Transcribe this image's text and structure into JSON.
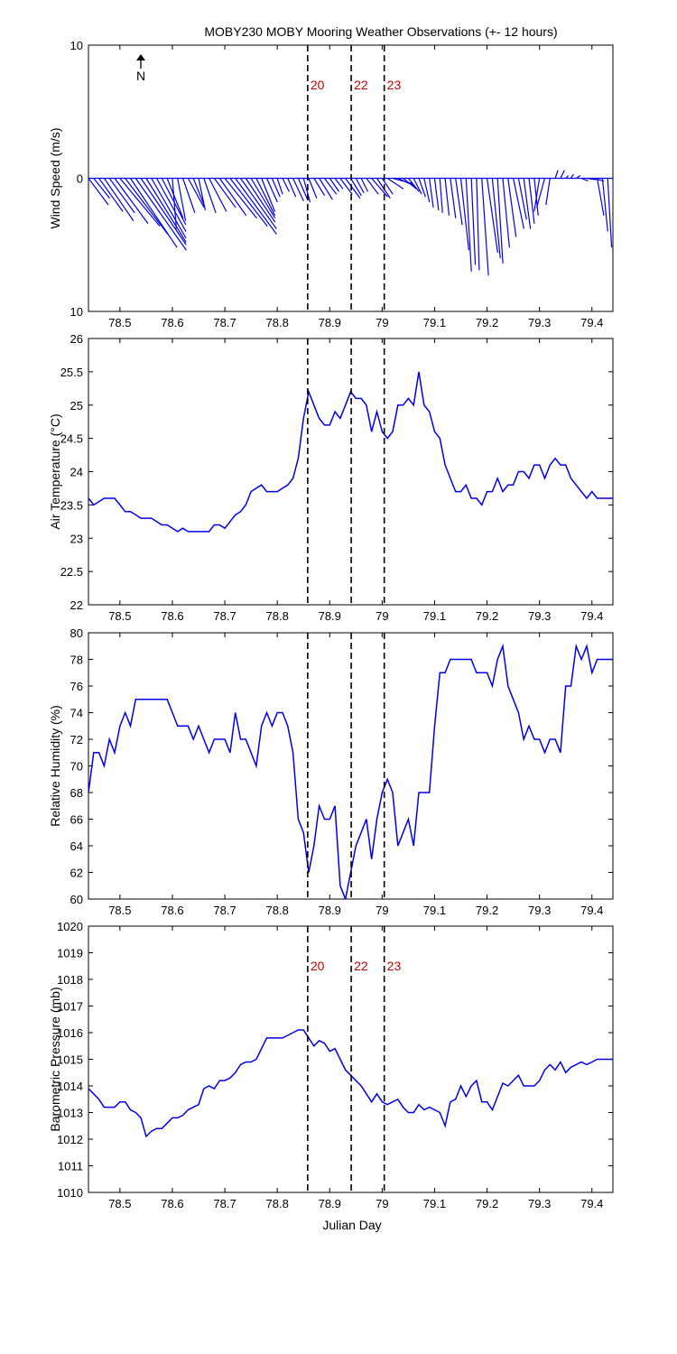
{
  "chart_data": {
    "type": "line",
    "title": "MOBY230 MOBY Mooring Weather Observations (+- 12 hours)",
    "xlabel": "Julian Day",
    "xlim": [
      78.44,
      79.44
    ],
    "xticks": [
      78.5,
      78.6,
      78.7,
      78.8,
      78.9,
      79,
      79.1,
      79.2,
      79.3,
      79.4
    ],
    "markers": [
      {
        "x": 78.858,
        "label": "20"
      },
      {
        "x": 78.941,
        "label": "22"
      },
      {
        "x": 79.004,
        "label": "23"
      }
    ],
    "north_label": "N",
    "panels": [
      {
        "name": "wind",
        "type": "stick",
        "ylabel": "Wind Speed (m/s)",
        "ylim": [
          -10,
          10
        ],
        "yticks": [
          10,
          0,
          10
        ],
        "show_markers": true,
        "sticks": {
          "x": [
            78.44,
            78.45,
            78.46,
            78.47,
            78.48,
            78.49,
            78.5,
            78.51,
            78.52,
            78.53,
            78.54,
            78.55,
            78.56,
            78.57,
            78.58,
            78.59,
            78.6,
            78.61,
            78.62,
            78.63,
            78.64,
            78.65,
            78.66,
            78.67,
            78.68,
            78.69,
            78.7,
            78.71,
            78.72,
            78.73,
            78.74,
            78.75,
            78.76,
            78.77,
            78.78,
            78.79,
            78.8,
            78.81,
            78.82,
            78.83,
            78.84,
            78.85,
            78.86,
            78.87,
            78.88,
            78.89,
            78.9,
            78.91,
            78.92,
            78.93,
            78.94,
            78.95,
            78.96,
            78.97,
            78.98,
            78.99,
            79.0,
            79.01,
            79.02,
            79.03,
            79.04,
            79.05,
            79.06,
            79.07,
            79.08,
            79.09,
            79.1,
            79.11,
            79.12,
            79.13,
            79.14,
            79.15,
            79.16,
            79.17,
            79.18,
            79.19,
            79.2,
            79.21,
            79.22,
            79.23,
            79.24,
            79.25,
            79.26,
            79.27,
            79.28,
            79.29,
            79.3,
            79.31,
            79.32,
            79.33,
            79.34,
            79.35,
            79.36,
            79.37,
            79.38,
            79.39,
            79.4,
            79.41,
            79.42,
            79.43,
            79.44
          ],
          "u": [
            1.5,
            1.2,
            1.8,
            2.2,
            1.9,
            2.5,
            3.0,
            3.2,
            3.5,
            3.8,
            3.4,
            3.0,
            2.6,
            2.2,
            1.8,
            1.2,
            0.3,
            0.6,
            0.9,
            1.2,
            0.8,
            0.5,
            0.9,
            1.3,
            1.6,
            2.0,
            2.4,
            2.8,
            3.1,
            2.7,
            2.2,
            1.8,
            1.4,
            1.0,
            0.8,
            0.6,
            0.4,
            0.5,
            0.6,
            0.8,
            0.7,
            0.5,
            0.6,
            0.8,
            1.0,
            0.9,
            0.7,
            0.6,
            0.9,
            1.1,
            0.8,
            0.6,
            0.5,
            0.9,
            1.2,
            1.0,
            0.8,
            1.2,
            1.5,
            1.3,
            1.0,
            0.8,
            0.6,
            0.5,
            0.4,
            0.3,
            0.3,
            0.2,
            0.3,
            0.4,
            0.5,
            0.6,
            0.4,
            0.3,
            0.2,
            0.5,
            0.8,
            0.6,
            0.4,
            0.5,
            0.6,
            0.8,
            0.6,
            0.5,
            0.4,
            0.3,
            -0.4,
            -0.6,
            -0.3,
            0.2,
            0.3,
            0.2,
            0.2,
            0.3,
            0.5,
            0.7,
            0.9,
            0.5,
            0.4,
            0.3,
            0.1
          ],
          "v": [
            -2.0,
            -1.5,
            -2.5,
            -3.2,
            -2.6,
            -3.4,
            -3.6,
            -4.2,
            -5.2,
            -5.4,
            -5.0,
            -4.8,
            -4.5,
            -4.0,
            -3.5,
            -3.0,
            -3.8,
            -3.2,
            -2.6,
            -2.2,
            -2.0,
            -2.4,
            -2.6,
            -2.5,
            -2.2,
            -2.8,
            -3.0,
            -3.6,
            -4.2,
            -3.8,
            -3.3,
            -3.0,
            -2.8,
            -2.5,
            -1.8,
            -1.4,
            -1.2,
            -1.0,
            -1.4,
            -1.7,
            -1.6,
            -1.8,
            -1.5,
            -1.3,
            -1.6,
            -1.2,
            -1.0,
            -0.8,
            -1.2,
            -1.5,
            -1.3,
            -1.1,
            -1.0,
            -1.2,
            -1.4,
            -1.5,
            -1.2,
            -0.8,
            -0.4,
            -0.6,
            -0.8,
            -1.0,
            -1.2,
            -1.4,
            -1.8,
            -2.2,
            -2.4,
            -2.6,
            -2.8,
            -3.0,
            -3.5,
            -5.4,
            -7.0,
            -6.5,
            -6.9,
            -7.3,
            -5.6,
            -6.0,
            -6.4,
            -5.2,
            -4.4,
            -3.8,
            -3.1,
            -3.8,
            -3.4,
            -2.8,
            -2.5,
            -2.2,
            -2.0,
            0.6,
            0.6,
            0.2,
            0.3,
            0.2,
            -0.2,
            -0.1,
            -0.2,
            -2.8,
            -4.0,
            -5.2,
            -5.2,
            -4.4,
            -2.4
          ]
        }
      },
      {
        "name": "air-temperature",
        "type": "line",
        "ylabel": "Air Temperature (°C)",
        "ylim": [
          22,
          26
        ],
        "yticks": [
          22,
          22.5,
          23,
          23.5,
          24,
          24.5,
          25,
          25.5,
          26
        ],
        "show_markers": false,
        "x": [
          78.44,
          78.45,
          78.46,
          78.47,
          78.48,
          78.49,
          78.5,
          78.51,
          78.52,
          78.53,
          78.54,
          78.55,
          78.56,
          78.57,
          78.58,
          78.59,
          78.6,
          78.61,
          78.62,
          78.63,
          78.64,
          78.65,
          78.66,
          78.67,
          78.68,
          78.69,
          78.7,
          78.71,
          78.72,
          78.73,
          78.74,
          78.75,
          78.76,
          78.77,
          78.78,
          78.79,
          78.8,
          78.81,
          78.82,
          78.83,
          78.84,
          78.85,
          78.86,
          78.87,
          78.88,
          78.89,
          78.9,
          78.91,
          78.92,
          78.93,
          78.94,
          78.95,
          78.96,
          78.97,
          78.98,
          78.99,
          79.0,
          79.01,
          79.02,
          79.03,
          79.04,
          79.05,
          79.06,
          79.07,
          79.08,
          79.09,
          79.1,
          79.11,
          79.12,
          79.13,
          79.14,
          79.15,
          79.16,
          79.17,
          79.18,
          79.19,
          79.2,
          79.21,
          79.22,
          79.23,
          79.24,
          79.25,
          79.26,
          79.27,
          79.28,
          79.29,
          79.3,
          79.31,
          79.32,
          79.33,
          79.34,
          79.35,
          79.36,
          79.37,
          79.38,
          79.39,
          79.4,
          79.41,
          79.42,
          79.43,
          79.44
        ],
        "y": [
          23.6,
          23.5,
          23.55,
          23.6,
          23.6,
          23.6,
          23.5,
          23.4,
          23.4,
          23.35,
          23.3,
          23.3,
          23.3,
          23.25,
          23.2,
          23.2,
          23.15,
          23.1,
          23.15,
          23.1,
          23.1,
          23.1,
          23.1,
          23.1,
          23.2,
          23.2,
          23.15,
          23.25,
          23.35,
          23.4,
          23.5,
          23.7,
          23.75,
          23.8,
          23.7,
          23.7,
          23.7,
          23.75,
          23.8,
          23.9,
          24.2,
          24.8,
          25.2,
          25.0,
          24.8,
          24.7,
          24.7,
          24.9,
          24.8,
          25.0,
          25.2,
          25.1,
          25.1,
          25.0,
          24.6,
          24.9,
          24.6,
          24.5,
          24.6,
          25.0,
          25.0,
          25.1,
          25.0,
          25.5,
          25.0,
          24.9,
          24.6,
          24.5,
          24.1,
          23.9,
          23.7,
          23.7,
          23.8,
          23.6,
          23.6,
          23.5,
          23.7,
          23.7,
          23.9,
          23.7,
          23.8,
          23.8,
          24.0,
          24.0,
          23.9,
          24.1,
          24.1,
          23.9,
          24.1,
          24.2,
          24.1,
          24.1,
          23.9,
          23.8,
          23.7,
          23.6,
          23.7,
          23.6,
          23.6,
          23.6,
          23.6
        ]
      },
      {
        "name": "relative-humidity",
        "type": "line",
        "ylabel": "Relative Humidity (%)",
        "ylim": [
          60,
          80
        ],
        "yticks": [
          60,
          62,
          64,
          66,
          68,
          70,
          72,
          74,
          76,
          78,
          80
        ],
        "show_markers": false,
        "x": [
          78.44,
          78.45,
          78.46,
          78.47,
          78.48,
          78.49,
          78.5,
          78.51,
          78.52,
          78.53,
          78.54,
          78.55,
          78.56,
          78.57,
          78.58,
          78.59,
          78.6,
          78.61,
          78.62,
          78.63,
          78.64,
          78.65,
          78.66,
          78.67,
          78.68,
          78.69,
          78.7,
          78.71,
          78.72,
          78.73,
          78.74,
          78.75,
          78.76,
          78.77,
          78.78,
          78.79,
          78.8,
          78.81,
          78.82,
          78.83,
          78.84,
          78.85,
          78.86,
          78.87,
          78.88,
          78.89,
          78.9,
          78.91,
          78.92,
          78.93,
          78.94,
          78.95,
          78.96,
          78.97,
          78.98,
          78.99,
          79.0,
          79.01,
          79.02,
          79.03,
          79.04,
          79.05,
          79.06,
          79.07,
          79.08,
          79.09,
          79.1,
          79.11,
          79.12,
          79.13,
          79.14,
          79.15,
          79.16,
          79.17,
          79.18,
          79.19,
          79.2,
          79.21,
          79.22,
          79.23,
          79.24,
          79.25,
          79.26,
          79.27,
          79.28,
          79.29,
          79.3,
          79.31,
          79.32,
          79.33,
          79.34,
          79.35,
          79.36,
          79.37,
          79.38,
          79.39,
          79.4,
          79.41,
          79.42,
          79.43,
          79.44
        ],
        "y": [
          68,
          71,
          71,
          70,
          72,
          71,
          73,
          74,
          73,
          75,
          75,
          75,
          75,
          75,
          75,
          75,
          74,
          73,
          73,
          73,
          72,
          73,
          72,
          71,
          72,
          72,
          72,
          71,
          74,
          72,
          72,
          71,
          70,
          73,
          74,
          73,
          74,
          74,
          73,
          71,
          66,
          65,
          62,
          64,
          67,
          66,
          66,
          67,
          61,
          60,
          62,
          64,
          65,
          66,
          63,
          66,
          68,
          69,
          68,
          64,
          65,
          66,
          64,
          68,
          68,
          68,
          73,
          77,
          77,
          78,
          78,
          78,
          78,
          78,
          77,
          77,
          77,
          76,
          78,
          79,
          76,
          75,
          74,
          72,
          73,
          72,
          72,
          71,
          72,
          72,
          71,
          76,
          76,
          79,
          78,
          79,
          77,
          78,
          78,
          78,
          78
        ]
      },
      {
        "name": "barometric-pressure",
        "type": "line",
        "ylabel": "Barometric Pressure (mb)",
        "ylim": [
          1010,
          1020
        ],
        "yticks": [
          1010,
          1011,
          1012,
          1013,
          1014,
          1015,
          1016,
          1017,
          1018,
          1019,
          1020
        ],
        "show_markers": true,
        "x": [
          78.44,
          78.45,
          78.46,
          78.47,
          78.48,
          78.49,
          78.5,
          78.51,
          78.52,
          78.53,
          78.54,
          78.55,
          78.56,
          78.57,
          78.58,
          78.59,
          78.6,
          78.61,
          78.62,
          78.63,
          78.64,
          78.65,
          78.66,
          78.67,
          78.68,
          78.69,
          78.7,
          78.71,
          78.72,
          78.73,
          78.74,
          78.75,
          78.76,
          78.77,
          78.78,
          78.79,
          78.8,
          78.81,
          78.82,
          78.83,
          78.84,
          78.85,
          78.86,
          78.87,
          78.88,
          78.89,
          78.9,
          78.91,
          78.92,
          78.93,
          78.94,
          78.95,
          78.96,
          78.97,
          78.98,
          78.99,
          79.0,
          79.01,
          79.02,
          79.03,
          79.04,
          79.05,
          79.06,
          79.07,
          79.08,
          79.09,
          79.1,
          79.11,
          79.12,
          79.13,
          79.14,
          79.15,
          79.16,
          79.17,
          79.18,
          79.19,
          79.2,
          79.21,
          79.22,
          79.23,
          79.24,
          79.25,
          79.26,
          79.27,
          79.28,
          79.29,
          79.3,
          79.31,
          79.32,
          79.33,
          79.34,
          79.35,
          79.36,
          79.37,
          79.38,
          79.39,
          79.4,
          79.41,
          79.42,
          79.43,
          79.44
        ],
        "y": [
          1013.9,
          1013.7,
          1013.5,
          1013.2,
          1013.2,
          1013.2,
          1013.4,
          1013.4,
          1013.1,
          1013.0,
          1012.8,
          1012.1,
          1012.3,
          1012.4,
          1012.4,
          1012.6,
          1012.8,
          1012.8,
          1012.9,
          1013.1,
          1013.2,
          1013.3,
          1013.9,
          1014.0,
          1013.9,
          1014.2,
          1014.2,
          1014.3,
          1014.5,
          1014.8,
          1014.9,
          1014.9,
          1015.0,
          1015.4,
          1015.8,
          1015.8,
          1015.8,
          1015.8,
          1015.9,
          1016.0,
          1016.1,
          1016.1,
          1015.8,
          1015.5,
          1015.7,
          1015.6,
          1015.3,
          1015.4,
          1015.0,
          1014.6,
          1014.4,
          1014.2,
          1014.0,
          1013.7,
          1013.4,
          1013.7,
          1013.4,
          1013.3,
          1013.4,
          1013.5,
          1013.2,
          1013.0,
          1013.0,
          1013.3,
          1013.1,
          1013.2,
          1013.1,
          1013.0,
          1012.5,
          1013.4,
          1013.5,
          1014.0,
          1013.6,
          1014.0,
          1014.2,
          1013.4,
          1013.4,
          1013.1,
          1013.6,
          1014.1,
          1014.0,
          1014.2,
          1014.4,
          1014.0,
          1014.0,
          1014.0,
          1014.2,
          1014.6,
          1014.8,
          1014.6,
          1014.9,
          1014.5,
          1014.7,
          1014.8,
          1014.9,
          1014.8,
          1014.9,
          1015.0,
          1015.0,
          1015.0,
          1015.0
        ]
      }
    ]
  }
}
